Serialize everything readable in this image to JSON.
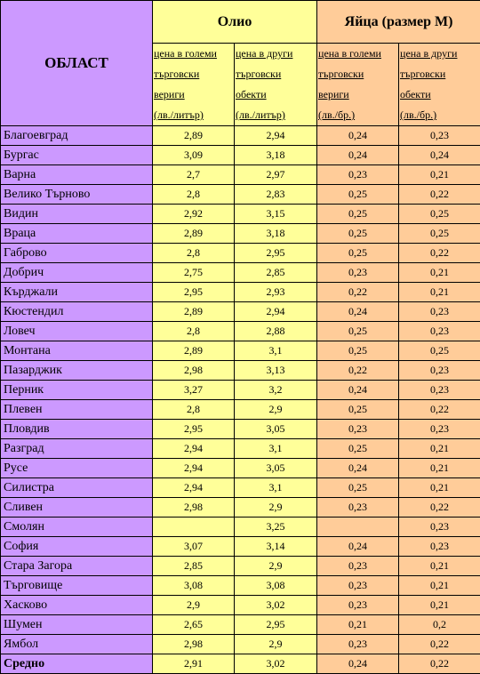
{
  "header": {
    "region": "ОБЛАСТ",
    "group_oil": "Олио",
    "group_eggs": "Яйца (размер М)",
    "sub": [
      [
        "цена в големи",
        "търговски",
        "вериги",
        "(лв./литър)"
      ],
      [
        "цена в други",
        "търговски",
        "обекти",
        "(лв./литър)"
      ],
      [
        "цена в големи",
        "търговски",
        "вериги",
        "(лв./бр.)"
      ],
      [
        "цена в други",
        "търговски",
        "обекти",
        "(лв./бр.)"
      ]
    ]
  },
  "rows": [
    {
      "name": "Благоевград",
      "v": [
        "2,89",
        "2,94",
        "0,24",
        "0,23"
      ]
    },
    {
      "name": "Бургас",
      "v": [
        "3,09",
        "3,18",
        "0,24",
        "0,24"
      ]
    },
    {
      "name": "Варна",
      "v": [
        "2,7",
        "2,97",
        "0,23",
        "0,21"
      ]
    },
    {
      "name": "Велико Търново",
      "v": [
        "2,8",
        "2,83",
        "0,25",
        "0,22"
      ]
    },
    {
      "name": "Видин",
      "v": [
        "2,92",
        "3,15",
        "0,25",
        "0,25"
      ]
    },
    {
      "name": "Враца",
      "v": [
        "2,89",
        "3,18",
        "0,25",
        "0,25"
      ]
    },
    {
      "name": "Габрово",
      "v": [
        "2,8",
        "2,95",
        "0,25",
        "0,22"
      ]
    },
    {
      "name": "Добрич",
      "v": [
        "2,75",
        "2,85",
        "0,23",
        "0,21"
      ]
    },
    {
      "name": "Кърджали",
      "v": [
        "2,95",
        "2,93",
        "0,22",
        "0,21"
      ]
    },
    {
      "name": "Кюстендил",
      "v": [
        "2,89",
        "2,94",
        "0,24",
        "0,23"
      ]
    },
    {
      "name": "Ловеч",
      "v": [
        "2,8",
        "2,88",
        "0,25",
        "0,23"
      ]
    },
    {
      "name": "Монтана",
      "v": [
        "2,89",
        "3,1",
        "0,25",
        "0,25"
      ]
    },
    {
      "name": "Пазарджик",
      "v": [
        "2,98",
        "3,13",
        "0,22",
        "0,23"
      ]
    },
    {
      "name": "Перник",
      "v": [
        "3,27",
        "3,2",
        "0,24",
        "0,23"
      ]
    },
    {
      "name": "Плевен",
      "v": [
        "2,8",
        "2,9",
        "0,25",
        "0,22"
      ]
    },
    {
      "name": "Пловдив",
      "v": [
        "2,95",
        "3,05",
        "0,23",
        "0,23"
      ]
    },
    {
      "name": "Разград",
      "v": [
        "2,94",
        "3,1",
        "0,25",
        "0,21"
      ]
    },
    {
      "name": "Русе",
      "v": [
        "2,94",
        "3,05",
        "0,24",
        "0,21"
      ]
    },
    {
      "name": "Силистра",
      "v": [
        "2,94",
        "3,1",
        "0,25",
        "0,21"
      ]
    },
    {
      "name": "Сливен",
      "v": [
        "2,98",
        "2,9",
        "0,23",
        "0,22"
      ]
    },
    {
      "name": "Смолян",
      "v": [
        "",
        "3,25",
        "",
        "0,23"
      ]
    },
    {
      "name": "София",
      "v": [
        "3,07",
        "3,14",
        "0,24",
        "0,23"
      ]
    },
    {
      "name": "Стара Загора",
      "v": [
        "2,85",
        "2,9",
        "0,23",
        "0,21"
      ]
    },
    {
      "name": "Търговище",
      "v": [
        "3,08",
        "3,08",
        "0,23",
        "0,21"
      ]
    },
    {
      "name": "Хасково",
      "v": [
        "2,9",
        "3,02",
        "0,23",
        "0,21"
      ]
    },
    {
      "name": "Шумен",
      "v": [
        "2,65",
        "2,95",
        "0,21",
        "0,2"
      ]
    },
    {
      "name": "Ямбол",
      "v": [
        "2,98",
        "2,9",
        "0,23",
        "0,22"
      ]
    }
  ],
  "average": {
    "name": "Средно",
    "v": [
      "2,91",
      "3,02",
      "0,24",
      "0,22"
    ]
  }
}
